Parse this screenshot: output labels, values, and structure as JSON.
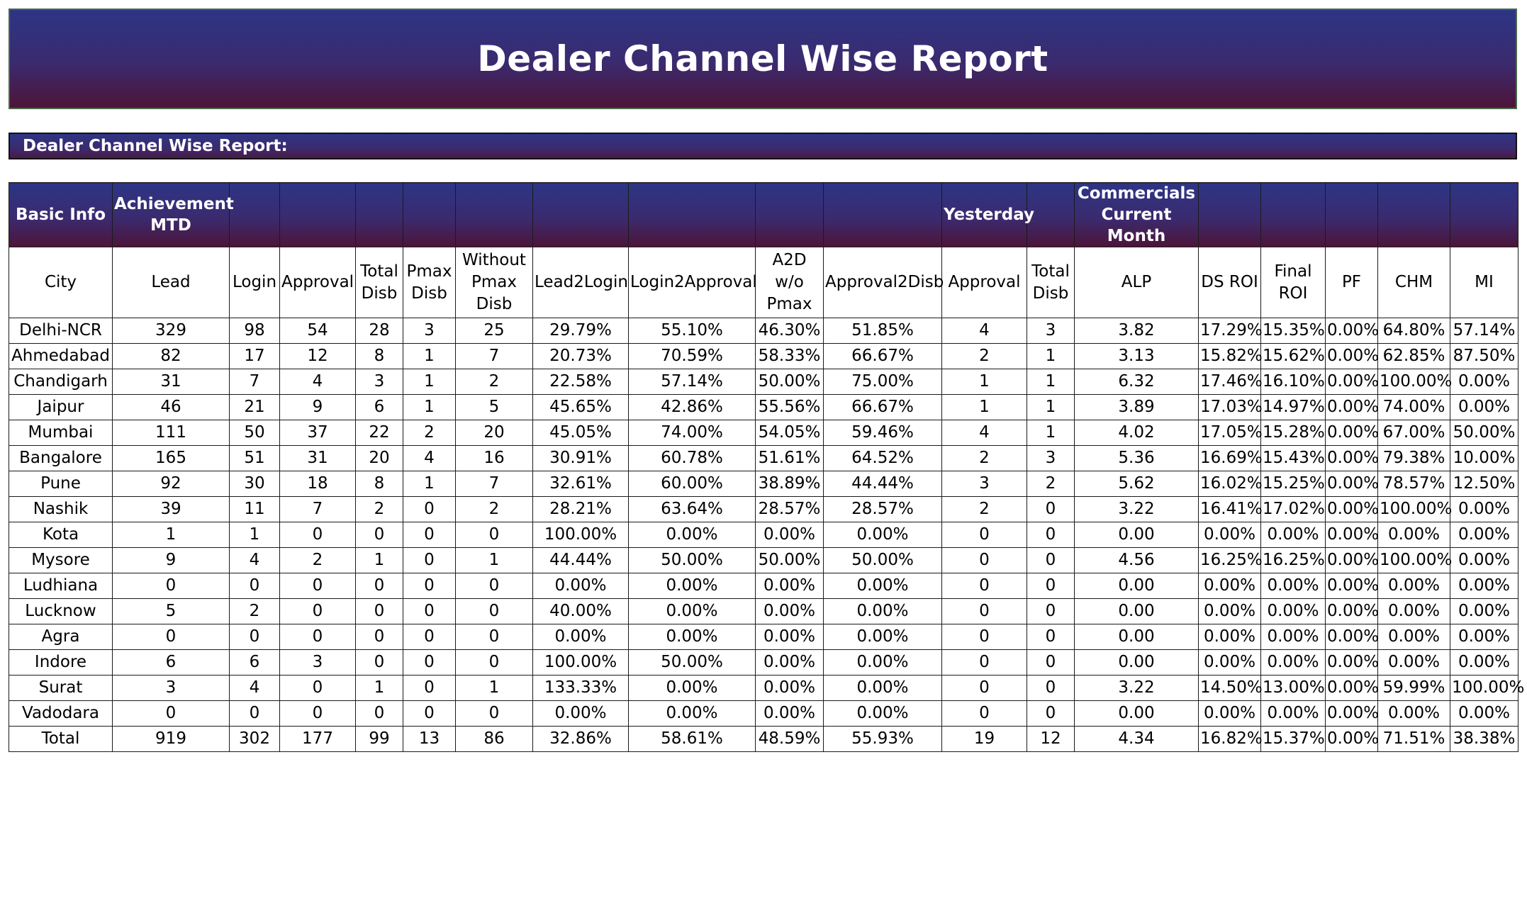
{
  "header": {
    "title": "Dealer Channel Wise Report"
  },
  "section": {
    "title": "Dealer Channel Wise Report:"
  },
  "table": {
    "group_headers": [
      "Basic Info",
      "Achievement MTD",
      "",
      "",
      "",
      "",
      "",
      "",
      "",
      "",
      "",
      "Yesterday",
      "",
      "Commercials Current Month",
      "",
      "",
      "",
      "",
      ""
    ],
    "columns": [
      "City",
      "Lead",
      "Login",
      "Approval",
      "Total Disb",
      "Pmax Disb",
      "Without Pmax Disb",
      "Lead2Login",
      "Login2Approval",
      "A2D w/o Pmax",
      "Approval2Disb",
      "Approval",
      "Total Disb",
      "ALP",
      "DS ROI",
      "Final ROI",
      "PF",
      "CHM",
      "MI"
    ],
    "rows": [
      [
        "Delhi-NCR",
        "329",
        "98",
        "54",
        "28",
        "3",
        "25",
        "29.79%",
        "55.10%",
        "46.30%",
        "51.85%",
        "4",
        "3",
        "3.82",
        "17.29%",
        "15.35%",
        "0.00%",
        "64.80%",
        "57.14%"
      ],
      [
        "Ahmedabad",
        "82",
        "17",
        "12",
        "8",
        "1",
        "7",
        "20.73%",
        "70.59%",
        "58.33%",
        "66.67%",
        "2",
        "1",
        "3.13",
        "15.82%",
        "15.62%",
        "0.00%",
        "62.85%",
        "87.50%"
      ],
      [
        "Chandigarh",
        "31",
        "7",
        "4",
        "3",
        "1",
        "2",
        "22.58%",
        "57.14%",
        "50.00%",
        "75.00%",
        "1",
        "1",
        "6.32",
        "17.46%",
        "16.10%",
        "0.00%",
        "100.00%",
        "0.00%"
      ],
      [
        "Jaipur",
        "46",
        "21",
        "9",
        "6",
        "1",
        "5",
        "45.65%",
        "42.86%",
        "55.56%",
        "66.67%",
        "1",
        "1",
        "3.89",
        "17.03%",
        "14.97%",
        "0.00%",
        "74.00%",
        "0.00%"
      ],
      [
        "Mumbai",
        "111",
        "50",
        "37",
        "22",
        "2",
        "20",
        "45.05%",
        "74.00%",
        "54.05%",
        "59.46%",
        "4",
        "1",
        "4.02",
        "17.05%",
        "15.28%",
        "0.00%",
        "67.00%",
        "50.00%"
      ],
      [
        "Bangalore",
        "165",
        "51",
        "31",
        "20",
        "4",
        "16",
        "30.91%",
        "60.78%",
        "51.61%",
        "64.52%",
        "2",
        "3",
        "5.36",
        "16.69%",
        "15.43%",
        "0.00%",
        "79.38%",
        "10.00%"
      ],
      [
        "Pune",
        "92",
        "30",
        "18",
        "8",
        "1",
        "7",
        "32.61%",
        "60.00%",
        "38.89%",
        "44.44%",
        "3",
        "2",
        "5.62",
        "16.02%",
        "15.25%",
        "0.00%",
        "78.57%",
        "12.50%"
      ],
      [
        "Nashik",
        "39",
        "11",
        "7",
        "2",
        "0",
        "2",
        "28.21%",
        "63.64%",
        "28.57%",
        "28.57%",
        "2",
        "0",
        "3.22",
        "16.41%",
        "17.02%",
        "0.00%",
        "100.00%",
        "0.00%"
      ],
      [
        "Kota",
        "1",
        "1",
        "0",
        "0",
        "0",
        "0",
        "100.00%",
        "0.00%",
        "0.00%",
        "0.00%",
        "0",
        "0",
        "0.00",
        "0.00%",
        "0.00%",
        "0.00%",
        "0.00%",
        "0.00%"
      ],
      [
        "Mysore",
        "9",
        "4",
        "2",
        "1",
        "0",
        "1",
        "44.44%",
        "50.00%",
        "50.00%",
        "50.00%",
        "0",
        "0",
        "4.56",
        "16.25%",
        "16.25%",
        "0.00%",
        "100.00%",
        "0.00%"
      ],
      [
        "Ludhiana",
        "0",
        "0",
        "0",
        "0",
        "0",
        "0",
        "0.00%",
        "0.00%",
        "0.00%",
        "0.00%",
        "0",
        "0",
        "0.00",
        "0.00%",
        "0.00%",
        "0.00%",
        "0.00%",
        "0.00%"
      ],
      [
        "Lucknow",
        "5",
        "2",
        "0",
        "0",
        "0",
        "0",
        "40.00%",
        "0.00%",
        "0.00%",
        "0.00%",
        "0",
        "0",
        "0.00",
        "0.00%",
        "0.00%",
        "0.00%",
        "0.00%",
        "0.00%"
      ],
      [
        "Agra",
        "0",
        "0",
        "0",
        "0",
        "0",
        "0",
        "0.00%",
        "0.00%",
        "0.00%",
        "0.00%",
        "0",
        "0",
        "0.00",
        "0.00%",
        "0.00%",
        "0.00%",
        "0.00%",
        "0.00%"
      ],
      [
        "Indore",
        "6",
        "6",
        "3",
        "0",
        "0",
        "0",
        "100.00%",
        "50.00%",
        "0.00%",
        "0.00%",
        "0",
        "0",
        "0.00",
        "0.00%",
        "0.00%",
        "0.00%",
        "0.00%",
        "0.00%"
      ],
      [
        "Surat",
        "3",
        "4",
        "0",
        "1",
        "0",
        "1",
        "133.33%",
        "0.00%",
        "0.00%",
        "0.00%",
        "0",
        "0",
        "3.22",
        "14.50%",
        "13.00%",
        "0.00%",
        "59.99%",
        "100.00%"
      ],
      [
        "Vadodara",
        "0",
        "0",
        "0",
        "0",
        "0",
        "0",
        "0.00%",
        "0.00%",
        "0.00%",
        "0.00%",
        "0",
        "0",
        "0.00",
        "0.00%",
        "0.00%",
        "0.00%",
        "0.00%",
        "0.00%"
      ],
      [
        "Total",
        "919",
        "302",
        "177",
        "99",
        "13",
        "86",
        "32.86%",
        "58.61%",
        "48.59%",
        "55.93%",
        "19",
        "12",
        "4.34",
        "16.82%",
        "15.37%",
        "0.00%",
        "71.51%",
        "38.38%"
      ]
    ]
  },
  "colors": {
    "header_gradient_top": "#2d3585",
    "header_gradient_bottom": "#4d1438",
    "header_text": "#ffffff"
  }
}
